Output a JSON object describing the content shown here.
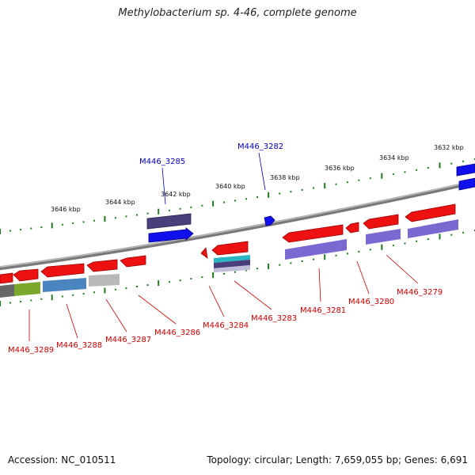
{
  "title": "Methylobacterium sp. 4-46, complete genome",
  "footer": {
    "accession": "Accession: NC_010511",
    "summary": "Topology: circular; Length: 7,659,055 bp; Genes: 6,691"
  },
  "colors": {
    "forward_label": "#0000bb",
    "reverse_label": "#cc0000",
    "tick": "#1f7a1f",
    "backbone": "#888888"
  },
  "ruler_labels": [
    "3646 kbp",
    "3644 kbp",
    "3642 kbp",
    "3640 kbp",
    "3638 kbp",
    "3636 kbp",
    "3634 kbp",
    "3632 kbp"
  ],
  "forward_gene_labels": [
    "M446_3285",
    "M446_3282"
  ],
  "reverse_gene_labels": [
    "M446_3289",
    "M446_3288",
    "M446_3287",
    "M446_3286",
    "M446_3284",
    "M446_3283",
    "M446_3281",
    "M446_3280",
    "M446_3279"
  ]
}
